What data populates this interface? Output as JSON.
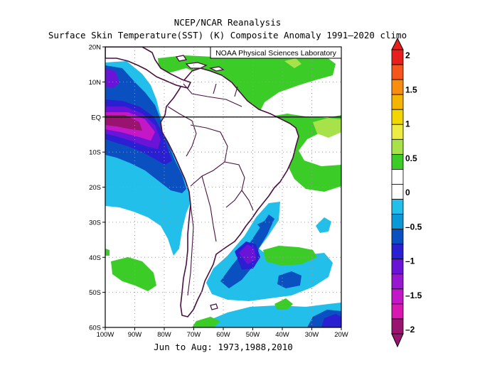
{
  "title_line1": "NCEP/NCAR Reanalysis",
  "title_line2": "Surface Skin Temperature(SST) (K) Composite Anomaly 1991—2020 climo",
  "subtitle": "Jun to Aug: 1973,1988,2010",
  "credit": "NOAA Physical Sciences Laboratory",
  "map": {
    "lon_range": [
      -100,
      -20
    ],
    "lat_range": [
      -60,
      20
    ],
    "x_ticks": [
      {
        "lon": -100,
        "label": "100W"
      },
      {
        "lon": -90,
        "label": "90W"
      },
      {
        "lon": -80,
        "label": "80W"
      },
      {
        "lon": -70,
        "label": "70W"
      },
      {
        "lon": -60,
        "label": "60W"
      },
      {
        "lon": -50,
        "label": "50W"
      },
      {
        "lon": -40,
        "label": "40W"
      },
      {
        "lon": -30,
        "label": "30W"
      },
      {
        "lon": -20,
        "label": "20W"
      }
    ],
    "y_ticks": [
      {
        "lat": 20,
        "label": "20N"
      },
      {
        "lat": 10,
        "label": "10N"
      },
      {
        "lat": 0,
        "label": "EQ"
      },
      {
        "lat": -10,
        "label": "10S"
      },
      {
        "lat": -20,
        "label": "20S"
      },
      {
        "lat": -30,
        "label": "30S"
      },
      {
        "lat": -40,
        "label": "40S"
      },
      {
        "lat": -50,
        "label": "50S"
      },
      {
        "lat": -60,
        "label": "60S"
      }
    ],
    "grid": "dotted",
    "equator_line": true
  },
  "colorbar": {
    "labels": [
      "2",
      "1.5",
      "1",
      "0.5",
      "0",
      "–0.5",
      "–1",
      "–1.5",
      "–2"
    ],
    "levels": [
      2,
      1.5,
      1,
      0.5,
      0,
      -0.5,
      -1,
      -1.5,
      -2
    ],
    "colors_top_to_bottom": [
      "#e8201c",
      "#f4561c",
      "#f98e0e",
      "#f4b400",
      "#f2d600",
      "#ecec44",
      "#a8e24a",
      "#3ccc28",
      "#ffffff",
      "#ffffff",
      "#21bfea",
      "#0a98d8",
      "#0a50c0",
      "#2a20d2",
      "#6a14d8",
      "#9818d0",
      "#c418c8",
      "#d818b0",
      "#98146e"
    ]
  },
  "anomaly_colors": {
    "pos_0_5": "#3ccc28",
    "pos_0_75": "#a8e24a",
    "pos_1": "#ecec44",
    "neg_0_5": "#21bfea",
    "neg_0_75": "#0a98d8",
    "neg_1": "#0a50c0",
    "neg_1_25": "#2a20d2",
    "neg_1_5": "#6a14d8",
    "neg_1_75": "#c418c8",
    "neg_2": "#98146e",
    "coast": "#4a1040"
  }
}
